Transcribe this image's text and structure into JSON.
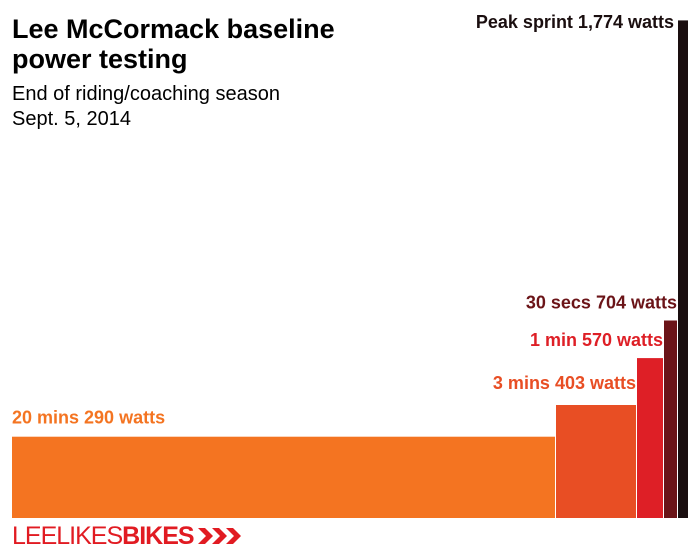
{
  "header": {
    "title": "Lee McCormack baseline power testing",
    "subtitle_line1": "End of riding/coaching season",
    "subtitle_line2": "Sept. 5, 2014"
  },
  "logo": {
    "part1": "LEE",
    "part2": "LIKES",
    "part3": "BIKES",
    "color": "#e11b22"
  },
  "chart_data": {
    "type": "bar",
    "title": "Lee McCormack baseline power testing",
    "subtitle": "End of riding/coaching season Sept. 5, 2014",
    "ylabel": "",
    "xlabel": "",
    "unit": "watts",
    "bars": [
      {
        "label": "20 mins 290 watts",
        "duration_seconds": 1200,
        "watts": 290,
        "color": "#f47421"
      },
      {
        "label": "3 mins 403 watts",
        "duration_seconds": 180,
        "watts": 403,
        "color": "#e84e24"
      },
      {
        "label": "1 min 570 watts",
        "duration_seconds": 60,
        "watts": 570,
        "color": "#de1f26"
      },
      {
        "label": "30 secs 704 watts",
        "duration_seconds": 30,
        "watts": 704,
        "color": "#6b1418"
      },
      {
        "label": "Peak sprint 1,774 watts",
        "duration_seconds": 0,
        "watts": 1774,
        "color": "#1a0e0f"
      }
    ]
  }
}
